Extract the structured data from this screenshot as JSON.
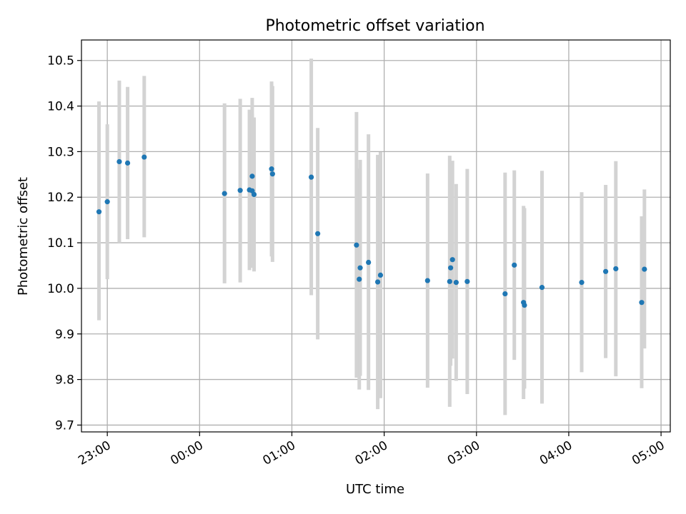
{
  "chart_data": {
    "type": "scatter",
    "title": "Photometric offset variation",
    "xlabel": "UTC time",
    "ylabel": "Photometric offset",
    "x_unit": "hours",
    "xlim": [
      -1.28,
      5.1
    ],
    "ylim": [
      9.685,
      10.545
    ],
    "x_ticks": [
      {
        "value": -1,
        "label": "23:00"
      },
      {
        "value": 0,
        "label": "00:00"
      },
      {
        "value": 1,
        "label": "01:00"
      },
      {
        "value": 2,
        "label": "02:00"
      },
      {
        "value": 3,
        "label": "03:00"
      },
      {
        "value": 4,
        "label": "04:00"
      },
      {
        "value": 5,
        "label": "05:00"
      }
    ],
    "y_ticks": [
      {
        "value": 9.7,
        "label": "9.7"
      },
      {
        "value": 9.8,
        "label": "9.8"
      },
      {
        "value": 9.9,
        "label": "9.9"
      },
      {
        "value": 10.0,
        "label": "10.0"
      },
      {
        "value": 10.1,
        "label": "10.1"
      },
      {
        "value": 10.2,
        "label": "10.2"
      },
      {
        "value": 10.3,
        "label": "10.3"
      },
      {
        "value": 10.4,
        "label": "10.4"
      },
      {
        "value": 10.5,
        "label": "10.5"
      }
    ],
    "grid": true,
    "point_color": "#1f77b4",
    "errorbar_color": "#d3d3d3",
    "points": [
      {
        "x": -1.09,
        "y": 10.168,
        "lo": 9.93,
        "hi": 10.41
      },
      {
        "x": -1.0,
        "y": 10.19,
        "lo": 10.02,
        "hi": 10.36
      },
      {
        "x": -0.87,
        "y": 10.278,
        "lo": 10.1,
        "hi": 10.456
      },
      {
        "x": -0.78,
        "y": 10.275,
        "lo": 10.108,
        "hi": 10.442
      },
      {
        "x": -0.6,
        "y": 10.288,
        "lo": 10.112,
        "hi": 10.466
      },
      {
        "x": 0.27,
        "y": 10.208,
        "lo": 10.011,
        "hi": 10.406
      },
      {
        "x": 0.44,
        "y": 10.215,
        "lo": 10.013,
        "hi": 10.416
      },
      {
        "x": 0.54,
        "y": 10.216,
        "lo": 10.04,
        "hi": 10.392
      },
      {
        "x": 0.57,
        "y": 10.246,
        "lo": 10.075,
        "hi": 10.418
      },
      {
        "x": 0.57,
        "y": 10.214,
        "lo": 10.045,
        "hi": 10.383
      },
      {
        "x": 0.59,
        "y": 10.206,
        "lo": 10.037,
        "hi": 10.375
      },
      {
        "x": 0.78,
        "y": 10.262,
        "lo": 10.07,
        "hi": 10.454
      },
      {
        "x": 0.79,
        "y": 10.251,
        "lo": 10.058,
        "hi": 10.444
      },
      {
        "x": 1.21,
        "y": 10.244,
        "lo": 9.985,
        "hi": 10.504
      },
      {
        "x": 1.28,
        "y": 10.12,
        "lo": 9.888,
        "hi": 10.352
      },
      {
        "x": 1.7,
        "y": 10.095,
        "lo": 9.804,
        "hi": 10.387
      },
      {
        "x": 1.73,
        "y": 10.02,
        "lo": 9.778,
        "hi": 10.263
      },
      {
        "x": 1.74,
        "y": 10.045,
        "lo": 9.808,
        "hi": 10.282
      },
      {
        "x": 1.83,
        "y": 10.057,
        "lo": 9.777,
        "hi": 10.338
      },
      {
        "x": 1.93,
        "y": 10.014,
        "lo": 9.735,
        "hi": 10.293
      },
      {
        "x": 1.96,
        "y": 10.029,
        "lo": 9.759,
        "hi": 10.299
      },
      {
        "x": 2.47,
        "y": 10.017,
        "lo": 9.782,
        "hi": 10.252
      },
      {
        "x": 2.71,
        "y": 10.015,
        "lo": 9.74,
        "hi": 10.291
      },
      {
        "x": 2.72,
        "y": 10.045,
        "lo": 9.83,
        "hi": 10.26
      },
      {
        "x": 2.74,
        "y": 10.063,
        "lo": 9.846,
        "hi": 10.28
      },
      {
        "x": 2.78,
        "y": 10.013,
        "lo": 9.797,
        "hi": 10.229
      },
      {
        "x": 2.9,
        "y": 10.015,
        "lo": 9.768,
        "hi": 10.262
      },
      {
        "x": 3.31,
        "y": 9.988,
        "lo": 9.722,
        "hi": 10.254
      },
      {
        "x": 3.41,
        "y": 10.051,
        "lo": 9.843,
        "hi": 10.259
      },
      {
        "x": 3.51,
        "y": 9.969,
        "lo": 9.757,
        "hi": 10.181
      },
      {
        "x": 3.52,
        "y": 9.963,
        "lo": 9.78,
        "hi": 10.176
      },
      {
        "x": 3.71,
        "y": 10.002,
        "lo": 9.747,
        "hi": 10.258
      },
      {
        "x": 4.14,
        "y": 10.013,
        "lo": 9.816,
        "hi": 10.211
      },
      {
        "x": 4.4,
        "y": 10.037,
        "lo": 9.847,
        "hi": 10.227
      },
      {
        "x": 4.51,
        "y": 10.043,
        "lo": 9.807,
        "hi": 10.279
      },
      {
        "x": 4.79,
        "y": 9.969,
        "lo": 9.781,
        "hi": 10.158
      },
      {
        "x": 4.82,
        "y": 10.042,
        "lo": 9.868,
        "hi": 10.217
      }
    ]
  }
}
